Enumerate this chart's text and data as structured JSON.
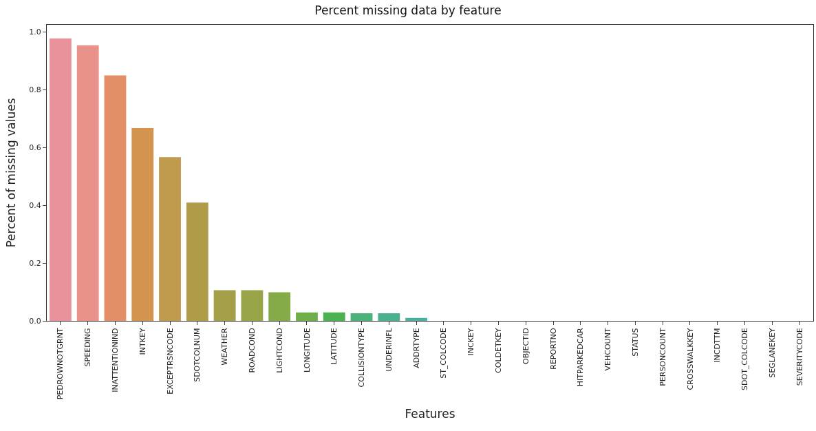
{
  "chart_data": {
    "type": "bar",
    "title": "Percent missing data by feature",
    "xlabel": "Features",
    "ylabel": "Percent of missing values",
    "categories": [
      "PEDROWNOTGRNT",
      "SPEEDING",
      "INATTENTIONIND",
      "INTKEY",
      "EXCEPTRSNCODE",
      "SDOTCOLNUM",
      "WEATHER",
      "ROADCOND",
      "LIGHTCOND",
      "LONGITUDE",
      "LATITUDE",
      "COLLISIONTYPE",
      "UNDERINFL",
      "ADDRTYPE",
      "ST_COLCODE",
      "INCKEY",
      "COLDETKEY",
      "OBJECTID",
      "REPORTNO",
      "HITPARKEDCAR",
      "VEHCOUNT",
      "STATUS",
      "PERSONCOUNT",
      "CROSSWALKKEY",
      "INCDTTM",
      "SDOT_COLCODE",
      "SEGLANEKEY",
      "SEVERITYCODE"
    ],
    "values": [
      0.977,
      0.953,
      0.849,
      0.667,
      0.566,
      0.409,
      0.106,
      0.106,
      0.099,
      0.029,
      0.029,
      0.026,
      0.026,
      0.01,
      0,
      0,
      0,
      0,
      0,
      0,
      0,
      0,
      0,
      0,
      0,
      0,
      0,
      0
    ],
    "colors": [
      "#e8939c",
      "#e8928a",
      "#e38e64",
      "#d39450",
      "#c09a4d",
      "#b09c48",
      "#a29f48",
      "#98a447",
      "#85ab48",
      "#6eaf4a",
      "#4ab24f",
      "#4ab278",
      "#4ab18f",
      "#4aaf9f",
      "#4aadab",
      "#4cabb6",
      "#50a8c3",
      "#5aa4d1",
      "#6d9ee0",
      "#8c97e4",
      "#a690e3",
      "#bb8ae0",
      "#cf84d9",
      "#de82c7",
      "#e586b5",
      "#e78aa8",
      "#e88aa0",
      "#e8909c"
    ],
    "ylim": [
      0,
      1.024
    ],
    "yticks": [
      {
        "value": 0,
        "label": "0.0"
      },
      0.2,
      0.4,
      0.6,
      0.8,
      {
        "value": 1,
        "label": "1.0"
      }
    ]
  }
}
